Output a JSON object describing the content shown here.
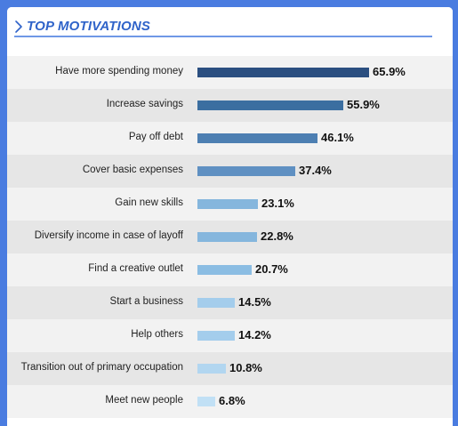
{
  "title": "TOP MOTIVATIONS",
  "chart_data": {
    "type": "bar",
    "orientation": "horizontal",
    "title": "TOP MOTIVATIONS",
    "categories": [
      "Have more spending money",
      "Increase savings",
      "Pay off debt",
      "Cover basic expenses",
      "Gain new skills",
      "Diversify income in case of layoff",
      "Find a creative outlet",
      "Start a business",
      "Help others",
      "Transition out of primary occupation",
      "Meet new people"
    ],
    "values": [
      65.9,
      55.9,
      46.1,
      37.4,
      23.1,
      22.8,
      20.7,
      14.5,
      14.2,
      10.8,
      6.8
    ],
    "value_labels": [
      "65.9%",
      "55.9%",
      "46.1%",
      "37.4%",
      "23.1%",
      "22.8%",
      "20.7%",
      "14.5%",
      "14.2%",
      "10.8%",
      "6.8%"
    ],
    "bar_colors": [
      "#2b4f80",
      "#3b6ea0",
      "#4d7fb2",
      "#5f90c2",
      "#85b6dd",
      "#85b6dd",
      "#8bbde3",
      "#a4cdec",
      "#a4cdec",
      "#b2d6f0",
      "#c1e0f5"
    ],
    "xlim": [
      0,
      65.9
    ],
    "grid": false,
    "legend": "none"
  },
  "colors": {
    "frame": "#4a7ce0",
    "title": "#2f63c9",
    "row_light": "#f2f2f2",
    "row_dark": "#e6e6e6"
  },
  "icons": {
    "title_marker": "chevron-right-icon"
  }
}
